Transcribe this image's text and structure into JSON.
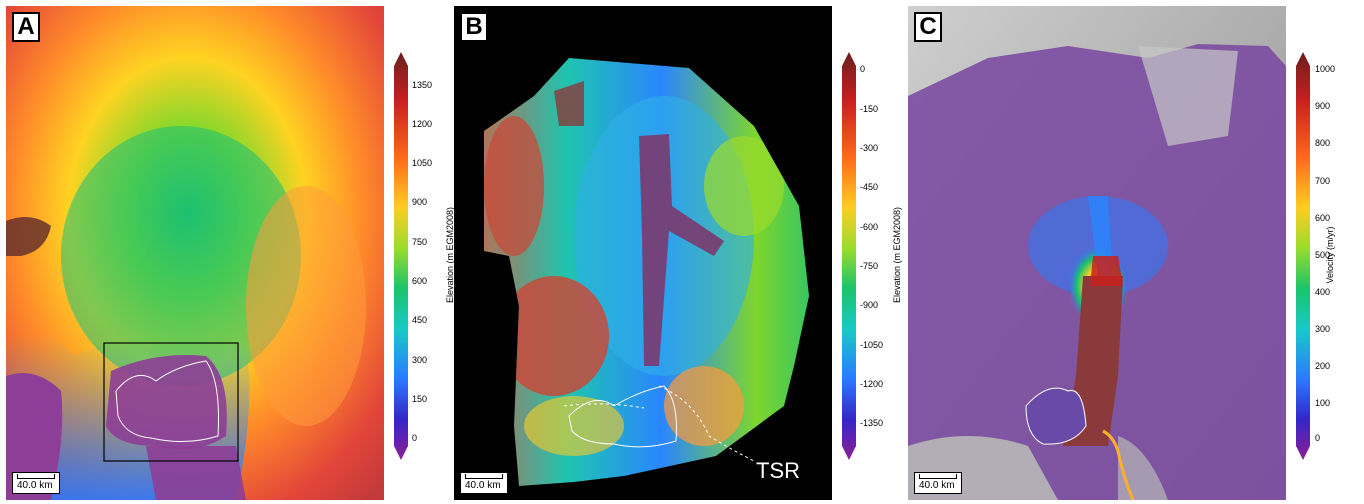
{
  "panels": [
    {
      "letter": "A",
      "scale_label": "40.0 km",
      "colorbar": {
        "title": "Elevation (m EGM2008)",
        "ticks": [
          "1350",
          "1200",
          "1050",
          "900",
          "750",
          "600",
          "450",
          "300",
          "150",
          "0"
        ]
      }
    },
    {
      "letter": "B",
      "scale_label": "40.0 km",
      "annotation": "TSR",
      "colorbar": {
        "title": "Elevation (m EGM2008)",
        "ticks": [
          "0",
          "-150",
          "-300",
          "-450",
          "-600",
          "-750",
          "-900",
          "-1050",
          "-1200",
          "-1350"
        ]
      }
    },
    {
      "letter": "C",
      "scale_label": "40.0 km",
      "colorbar": {
        "title": "Velocity (m/yr)",
        "ticks": [
          "1000",
          "900",
          "800",
          "700",
          "600",
          "500",
          "400",
          "300",
          "200",
          "100",
          "0"
        ]
      }
    }
  ],
  "colors": {
    "colormap": [
      "#6b1e1e",
      "#c8201f",
      "#ff6a1a",
      "#ffcc22",
      "#9bdc2b",
      "#19c46a",
      "#17c9c8",
      "#2a7bff",
      "#3426c9",
      "#8d1e96"
    ],
    "map_background_b": "#000000",
    "outline": "#ffffff"
  }
}
